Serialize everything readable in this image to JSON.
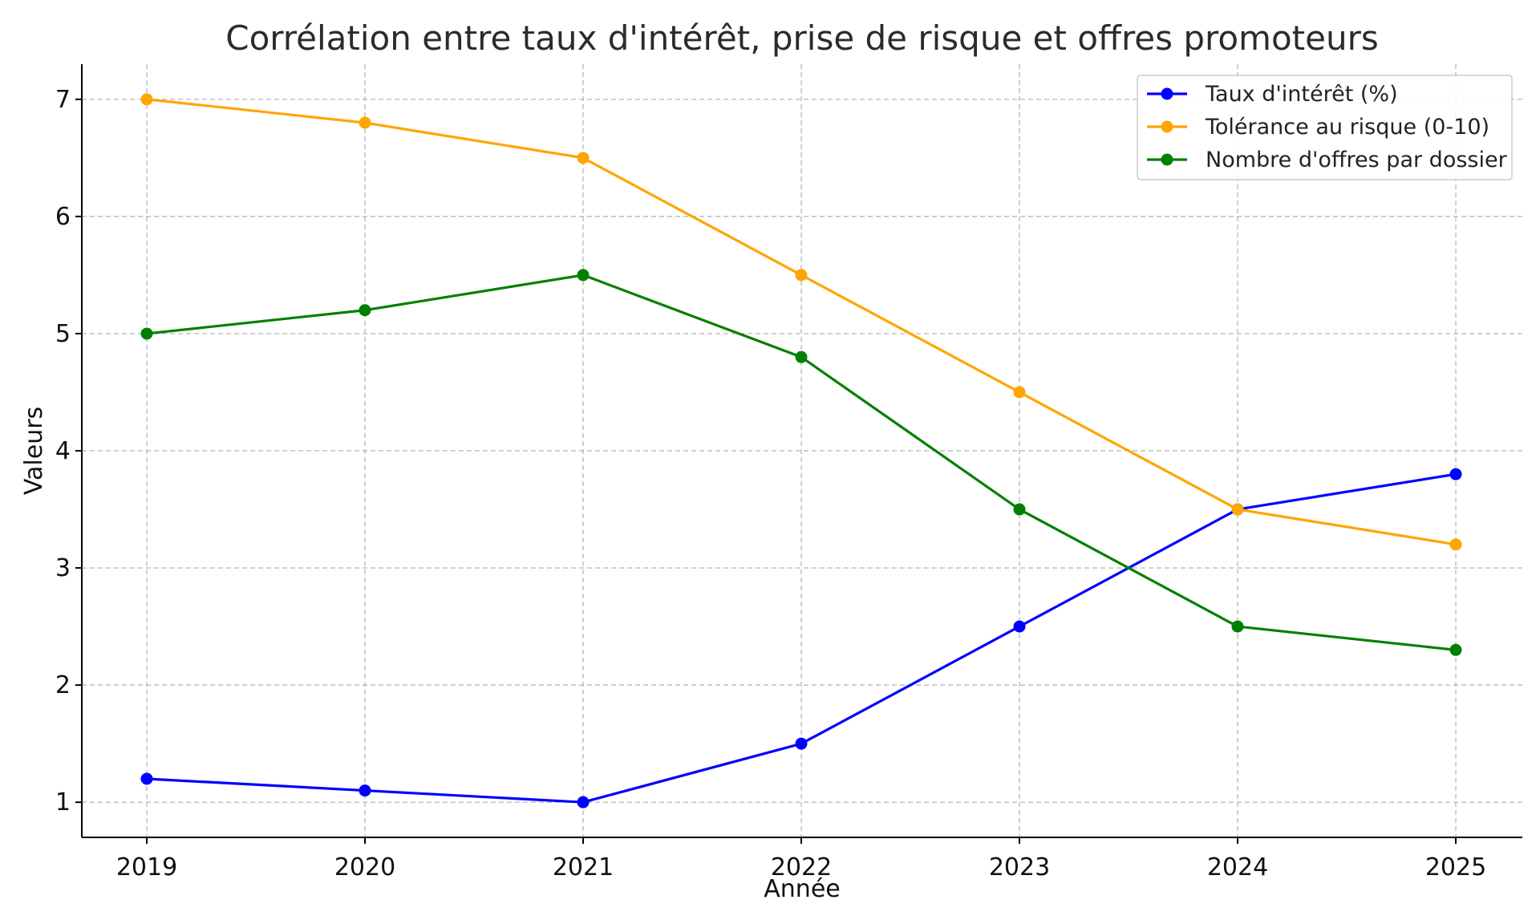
{
  "chart_data": {
    "type": "line",
    "title": "Corrélation entre taux d'intérêt, prise de risque et offres promoteurs",
    "xlabel": "Année",
    "ylabel": "Valeurs",
    "x": [
      "2019",
      "2020",
      "2021",
      "2022",
      "2023",
      "2024",
      "2025"
    ],
    "ylim": [
      0.7,
      7.3
    ],
    "yticks": [
      "1",
      "2",
      "3",
      "4",
      "5",
      "6",
      "7"
    ],
    "grid": true,
    "legend_position": "top-right",
    "series": [
      {
        "name": "Taux d'intérêt (%)",
        "color": "#0000ff",
        "values": [
          1.2,
          1.1,
          1.0,
          1.5,
          2.5,
          3.5,
          3.8
        ]
      },
      {
        "name": "Tolérance au risque (0-10)",
        "color": "#ffa500",
        "values": [
          7.0,
          6.8,
          6.5,
          5.5,
          4.5,
          3.5,
          3.2
        ]
      },
      {
        "name": "Nombre d'offres par dossier",
        "color": "#008000",
        "values": [
          5.0,
          5.2,
          5.5,
          4.8,
          3.5,
          2.5,
          2.3
        ]
      }
    ]
  }
}
